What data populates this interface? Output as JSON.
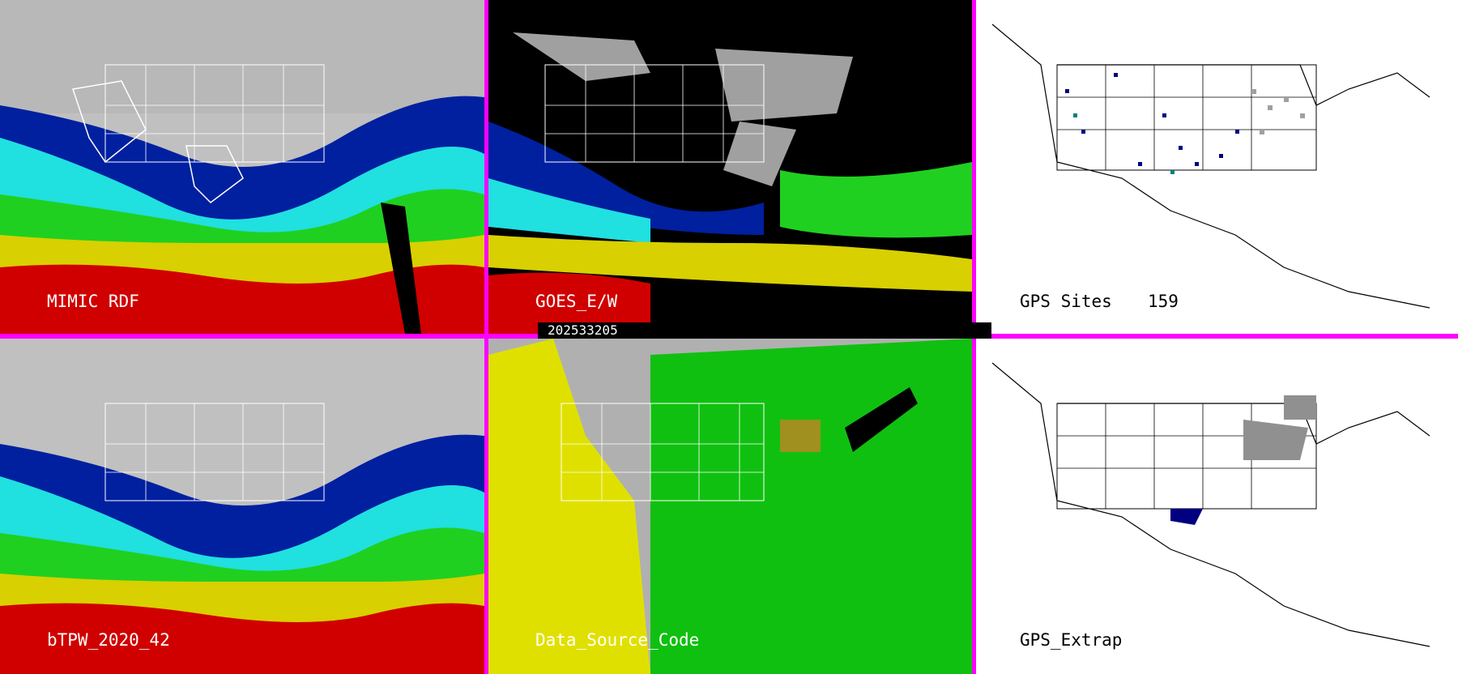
{
  "panels": [
    {
      "id": "mimic",
      "label": "MIMIC RDF",
      "style": "tpw",
      "base": "#c0c0c0"
    },
    {
      "id": "goes",
      "label": "GOES_E/W",
      "style": "goes",
      "base": "#000000"
    },
    {
      "id": "gps_sites",
      "label": "GPS Sites",
      "count": "159",
      "style": "map",
      "base": "#ffffff"
    },
    {
      "id": "btpw",
      "label": "bTPW_2020_42",
      "style": "tpw",
      "base": "#c0c0c0"
    },
    {
      "id": "source_code",
      "label": "Data_Source_Code",
      "style": "source",
      "base": "#b0b0b0"
    },
    {
      "id": "gps_extrap",
      "label": "GPS_Extrap",
      "style": "map",
      "base": "#ffffff"
    }
  ],
  "timestamp": "202533205",
  "colors": {
    "border": "#ff00ff",
    "tpw_red": "#d00000",
    "tpw_yellow": "#d8d000",
    "tpw_green": "#20d020",
    "tpw_cyan": "#20e0e0",
    "tpw_blue": "#0020a0",
    "source_yellow": "#e0e000",
    "source_green": "#10c010",
    "source_olive": "#a09020"
  }
}
